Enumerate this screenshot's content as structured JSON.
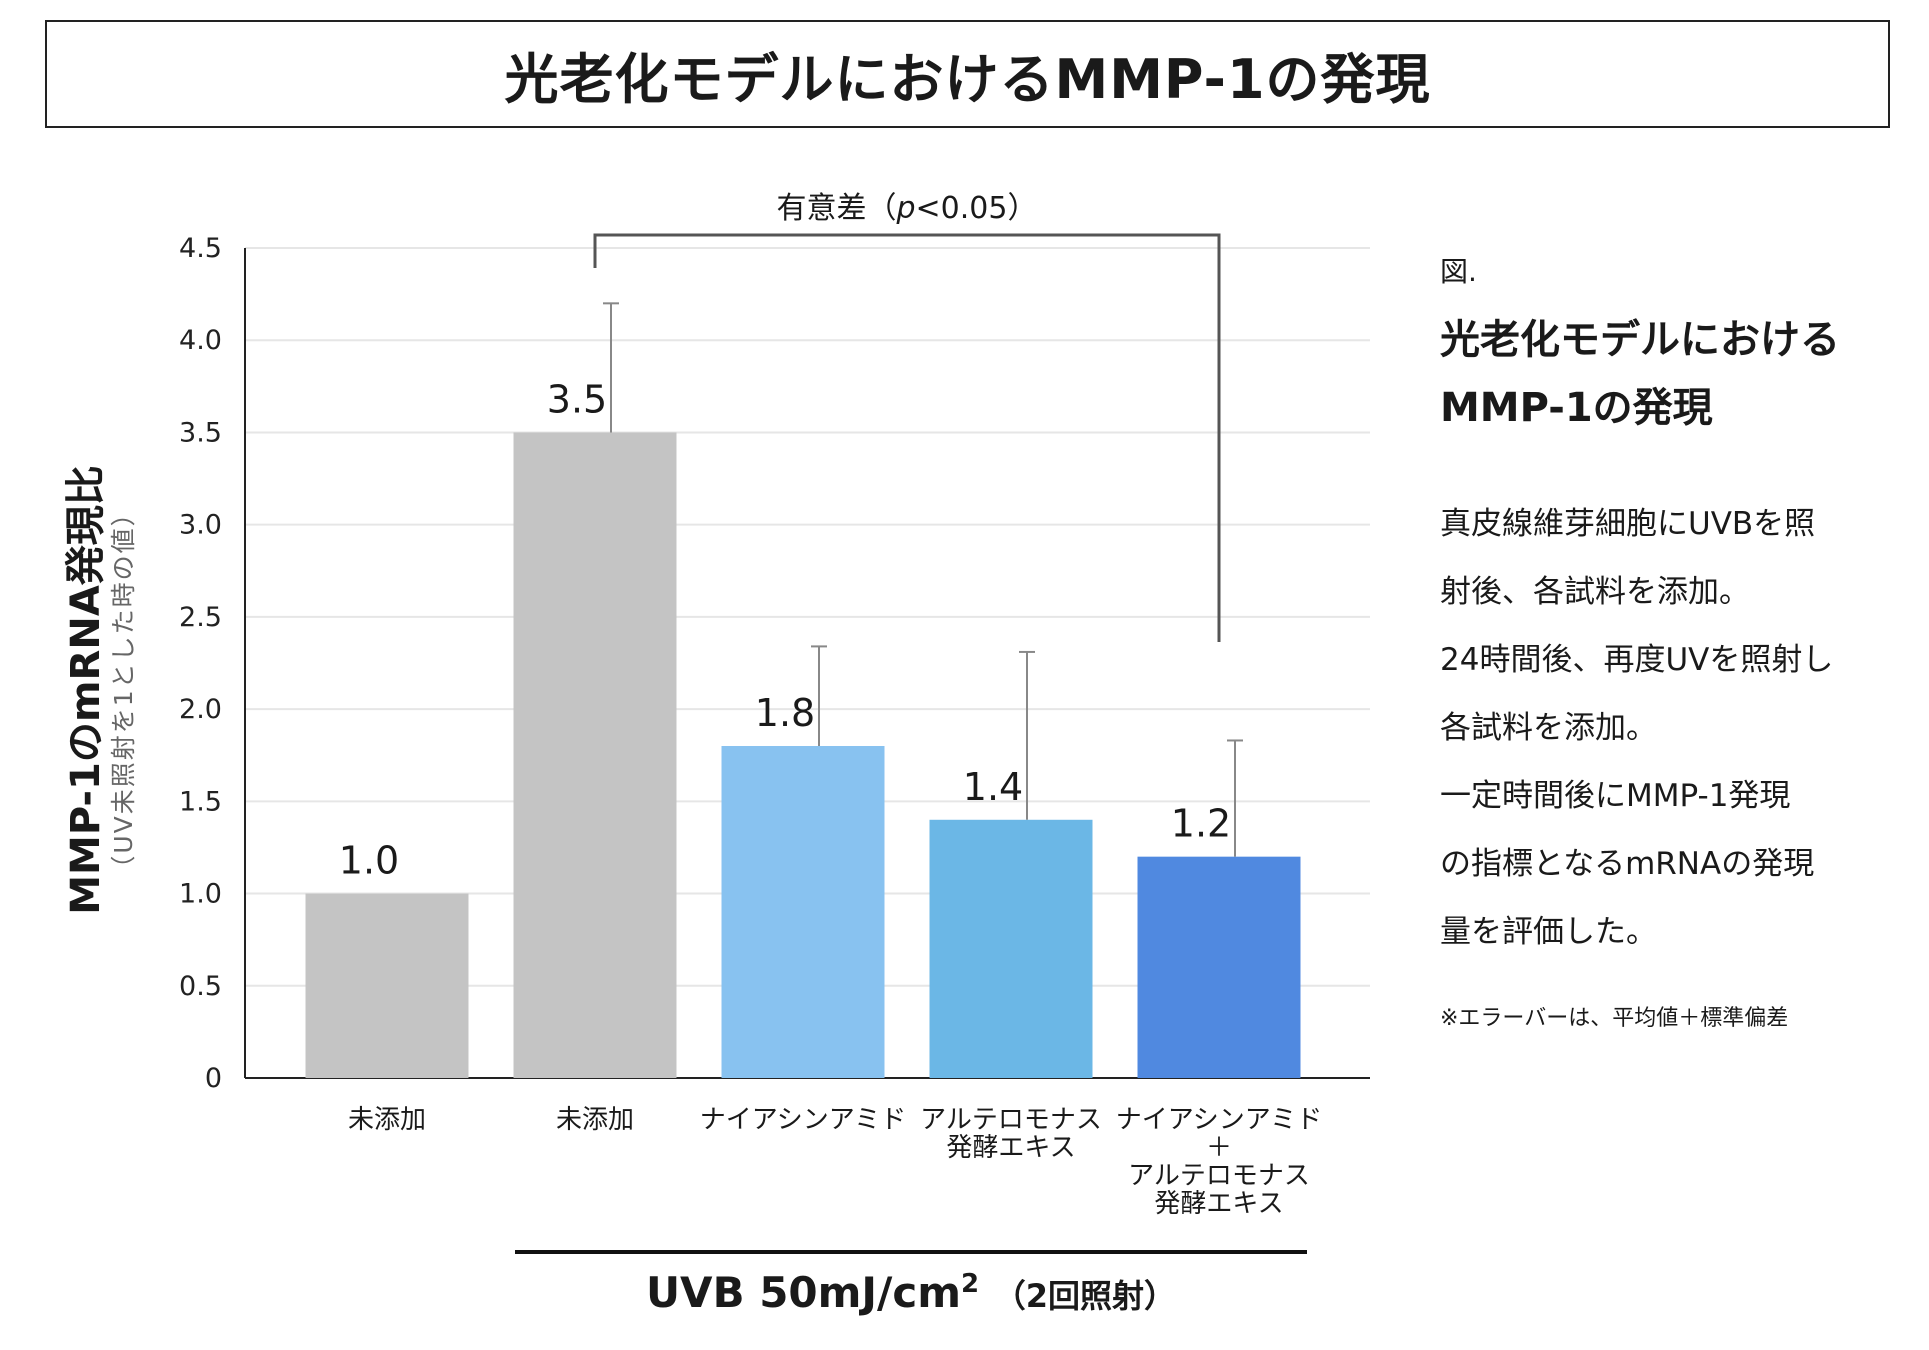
{
  "header": {
    "title": "光老化モデルにおけるMMP-1の発現"
  },
  "chart_data": {
    "type": "bar",
    "categories": [
      [
        "未添加"
      ],
      [
        "未添加"
      ],
      [
        "ナイアシンアミド"
      ],
      [
        "アルテロモナス",
        "発酵エキス"
      ],
      [
        "ナイアシンアミド",
        "＋",
        "アルテロモナス",
        "発酵エキス"
      ]
    ],
    "values": [
      1.0,
      3.5,
      1.8,
      1.4,
      1.2
    ],
    "value_labels": [
      "1.0",
      "3.5",
      "1.8",
      "1.4",
      "1.2"
    ],
    "error_upper": [
      null,
      4.2,
      2.34,
      2.31,
      1.83
    ],
    "colors": [
      "#c4c4c4",
      "#c4c4c4",
      "#88c2f0",
      "#6bb7e6",
      "#5089e0"
    ],
    "ylim": [
      0,
      4.5
    ],
    "yticks": [
      "0",
      "0.5",
      "1.0",
      "1.5",
      "2.0",
      "2.5",
      "3.0",
      "3.5",
      "4.0",
      "4.5"
    ],
    "ytick_values": [
      0,
      0.5,
      1.0,
      1.5,
      2.0,
      2.5,
      3.0,
      3.5,
      4.0,
      4.5
    ],
    "ylabel": "MMP-1のmRNA発現比",
    "ylabel_sub": "（UV未照射を1とした時の値）",
    "grid": true,
    "significance": {
      "label_prefix": "有意差（",
      "label_p": "p",
      "label_suffix": "<0.05）",
      "between": [
        1,
        4
      ]
    }
  },
  "uvb": {
    "label": "UVB 50mJ/cm",
    "sup": "2",
    "suffix": "（2回照射）"
  },
  "side": {
    "fig": "図.",
    "title_lines": [
      "光老化モデルにおける",
      "MMP-1の発現"
    ],
    "description": [
      "真皮線維芽細胞にUVBを照",
      "射後、各試料を添加。",
      "24時間後、再度UVを照射し",
      "各試料を添加。",
      "一定時間後にMMP-1発現",
      "の指標となるmRNAの発現",
      "量を評価した。"
    ],
    "note": "※エラーバーは、平均値＋標準偏差"
  }
}
